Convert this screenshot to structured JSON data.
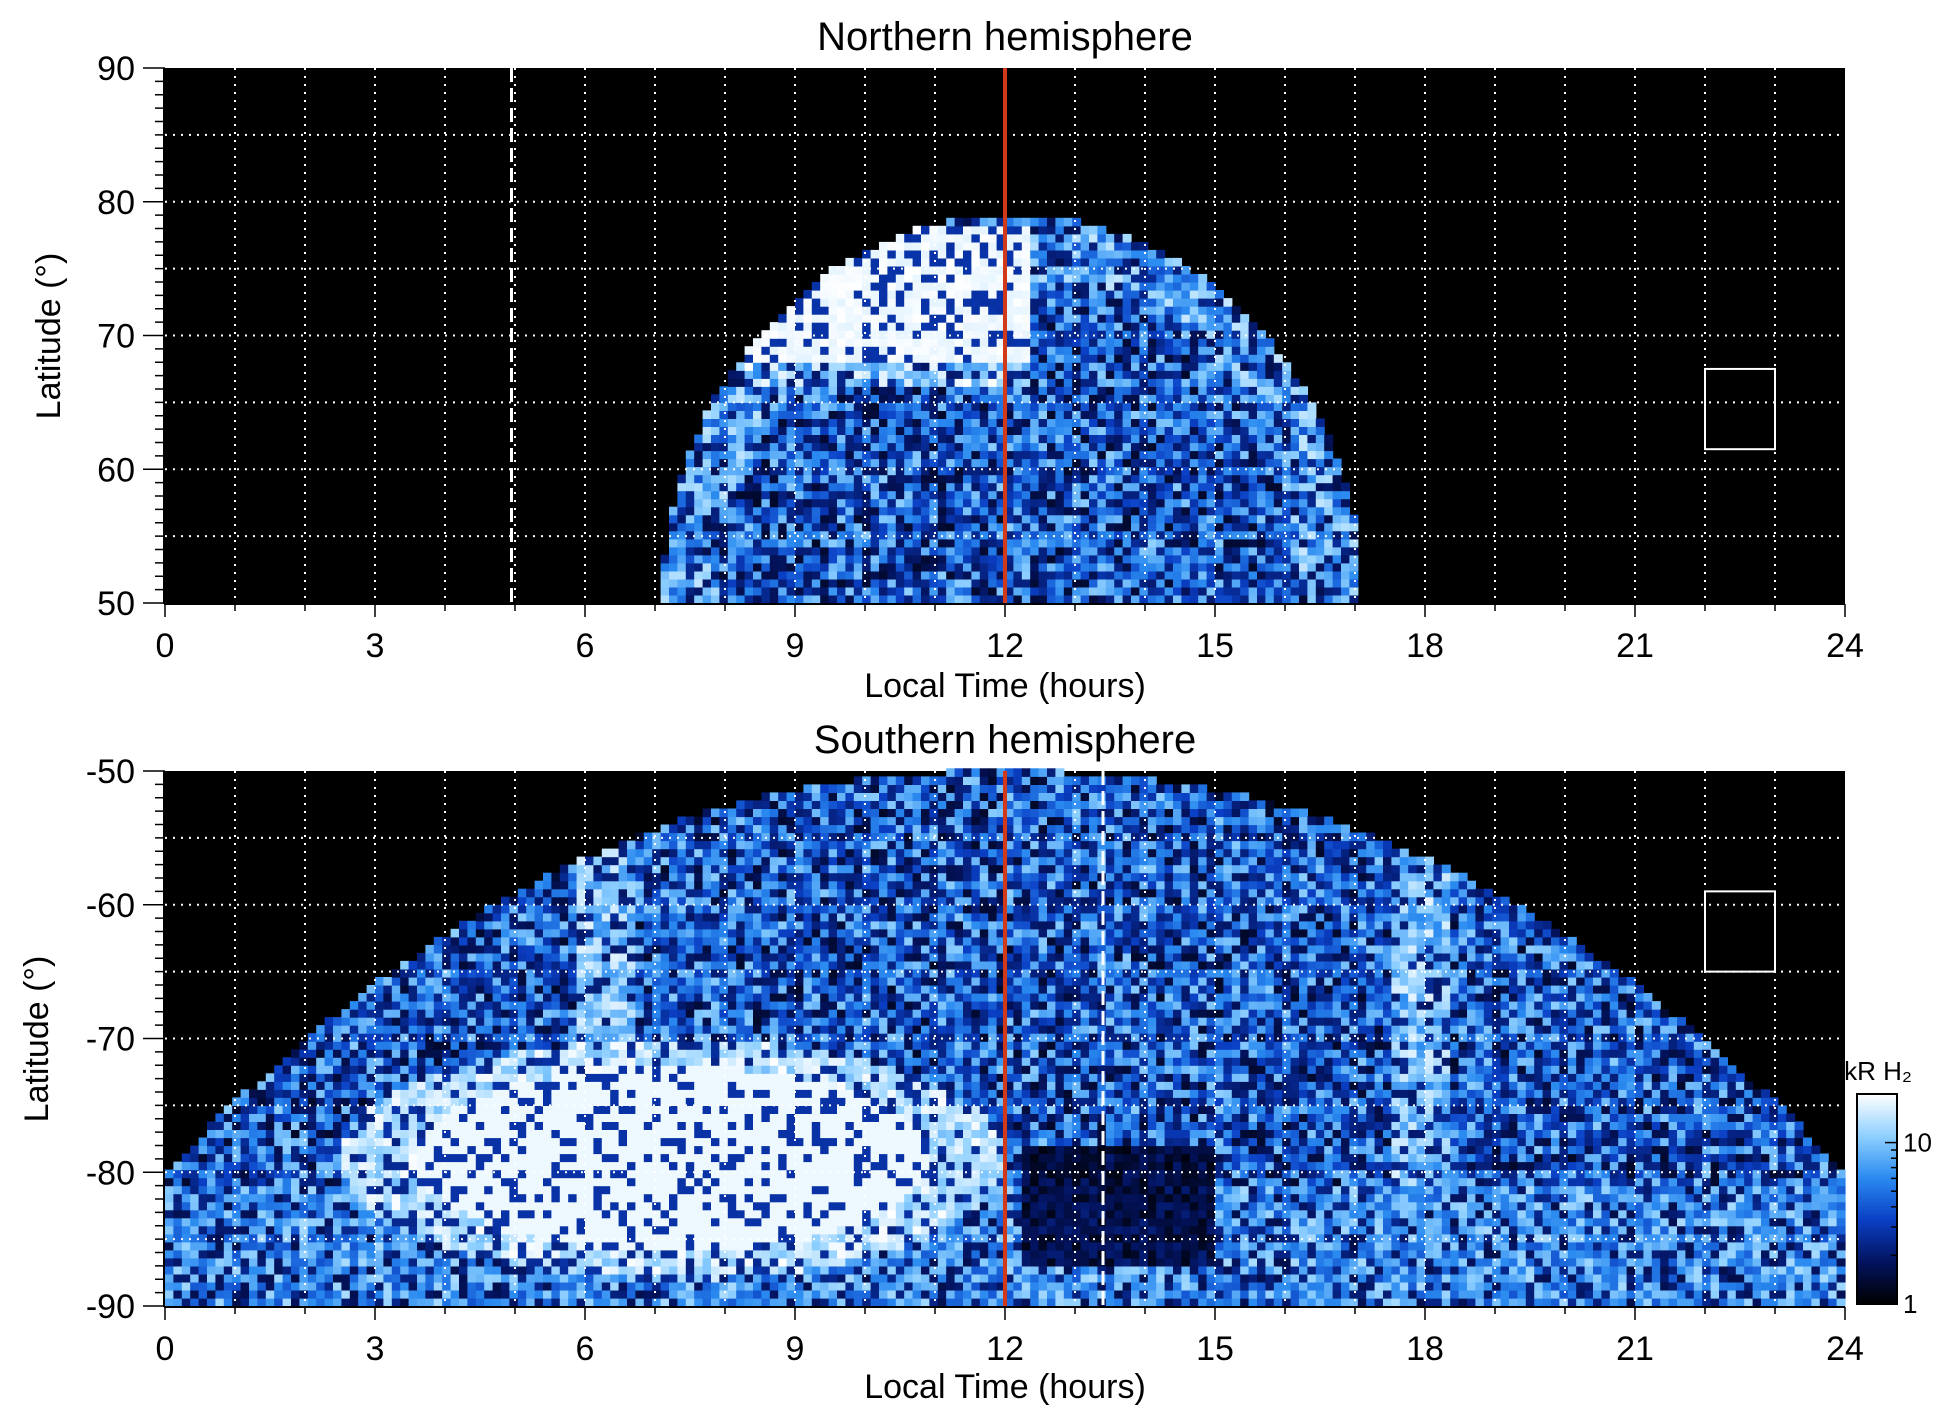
{
  "chart_data": [
    {
      "type": "heatmap",
      "title": "Northern hemisphere",
      "xlabel": "Local Time (hours)",
      "ylabel": "Latitude (°)",
      "xlim": [
        0,
        24
      ],
      "ylim": [
        50,
        90
      ],
      "x_ticks": [
        0,
        3,
        6,
        9,
        12,
        15,
        18,
        21,
        24
      ],
      "x_tick_labels": [
        "0",
        "3",
        "6",
        "9",
        "12",
        "15",
        "18",
        "21",
        "24"
      ],
      "y_ticks": [
        50,
        60,
        70,
        80,
        90
      ],
      "y_tick_labels": [
        "50",
        "60",
        "70",
        "80",
        "90"
      ],
      "grid": true,
      "grid_x_step": 1,
      "grid_y_step": 5,
      "coverage": {
        "lt_center": 12.1,
        "lt_half_width": 5.0,
        "lat_max": 79
      },
      "bright_region": {
        "lt_range": [
          8.3,
          12.3
        ],
        "lat_range": [
          66,
          78
        ],
        "intensity": "saturated"
      },
      "reference_lines": [
        {
          "x": 12,
          "style": "solid",
          "color": "#d03a1a"
        },
        {
          "x": 4.95,
          "style": "dashed",
          "color": "#ffffff"
        }
      ],
      "box": {
        "lt_range": [
          22.0,
          23.0
        ],
        "lat_range": [
          61.5,
          67.5
        ]
      }
    },
    {
      "type": "heatmap",
      "title": "Southern hemisphere",
      "xlabel": "Local Time (hours)",
      "ylabel": "Latitude (°)",
      "xlim": [
        0,
        24
      ],
      "ylim": [
        -90,
        -50
      ],
      "x_ticks": [
        0,
        3,
        6,
        9,
        12,
        15,
        18,
        21,
        24
      ],
      "x_tick_labels": [
        "0",
        "3",
        "6",
        "9",
        "12",
        "15",
        "18",
        "21",
        "24"
      ],
      "y_ticks": [
        -90,
        -80,
        -70,
        -60,
        -50
      ],
      "y_tick_labels": [
        "-90",
        "-80",
        "-70",
        "-60",
        "-50"
      ],
      "grid": true,
      "grid_x_step": 1,
      "grid_y_step": 5,
      "coverage": {
        "lt_range": [
          0,
          24
        ],
        "lat_edge": -81
      },
      "bright_region": {
        "lt_range": [
          2.5,
          12.0
        ],
        "lat_range": [
          -88,
          -70
        ],
        "intensity": "saturated"
      },
      "reference_lines": [
        {
          "x": 12,
          "style": "solid",
          "color": "#d03a1a"
        },
        {
          "x": 13.4,
          "style": "dashed",
          "color": "#ffffff"
        }
      ],
      "box": {
        "lt_range": [
          22.0,
          23.0
        ],
        "lat_range": [
          -65,
          -59
        ]
      }
    }
  ],
  "colorbar": {
    "title": "kR H₂",
    "scale": "log",
    "range": [
      1,
      20
    ],
    "tick_labels": [
      "1",
      "10"
    ],
    "colors": [
      "#000000",
      "#03135e",
      "#0a3fc4",
      "#2a8af0",
      "#8fd0ff",
      "#ffffff"
    ]
  }
}
